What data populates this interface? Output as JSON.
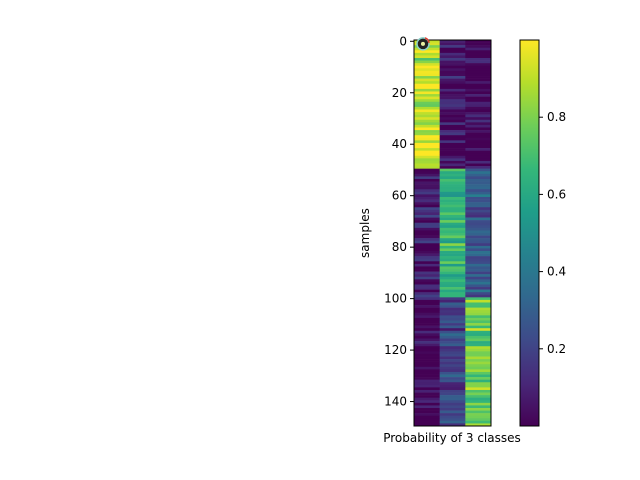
{
  "chart_data": {
    "type": "heatmap",
    "title": "",
    "xlabel": "Probability of 3 classes",
    "ylabel": "samples",
    "n_rows": 150,
    "n_cols": 3,
    "y_ticks": [
      "0",
      "20",
      "40",
      "60",
      "80",
      "100",
      "120",
      "140"
    ],
    "y_tick_values": [
      0,
      20,
      40,
      60,
      80,
      100,
      120,
      140
    ],
    "ylim": [
      -0.5,
      149.5
    ],
    "colormap": "viridis",
    "colorbar": {
      "range": [
        0.0,
        1.0
      ],
      "ticks": [
        "0.2",
        "0.4",
        "0.6",
        "0.8"
      ],
      "tick_values": [
        0.2,
        0.4,
        0.6,
        0.8
      ]
    },
    "marker": {
      "row": 1,
      "col": 0
    },
    "groups": [
      {
        "rows": [
          0,
          49
        ],
        "dominant_class": 0,
        "class_probabilities": [
          0.93,
          0.07,
          0.0
        ]
      },
      {
        "rows": [
          50,
          99
        ],
        "dominant_class": 1,
        "class_probabilities": [
          0.07,
          0.65,
          0.28
        ]
      },
      {
        "rows": [
          100,
          149
        ],
        "dominant_class": 2,
        "class_probabilities": [
          0.01,
          0.22,
          0.77
        ]
      }
    ]
  }
}
